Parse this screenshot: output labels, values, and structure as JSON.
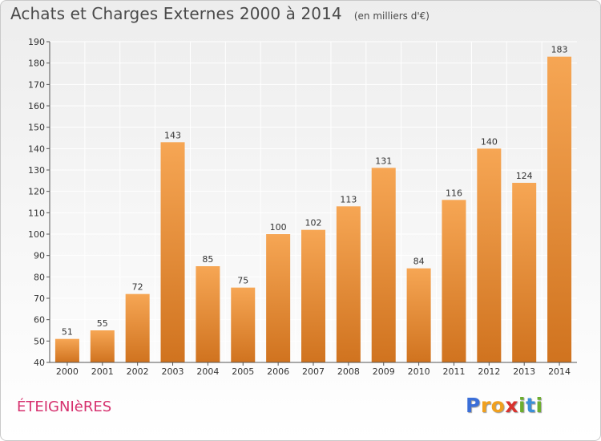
{
  "header": {
    "title": "Achats et Charges Externes 2000 à 2014",
    "subtitle": "(en milliers d'€)"
  },
  "footer": {
    "commune": "ÉTEIGNIèRES",
    "logo": {
      "letters": [
        "P",
        "r",
        "o",
        "x",
        "i",
        "t",
        "i"
      ],
      "colors": [
        "#3b6fd8",
        "#f0a01e",
        "#f0a01e",
        "#d8322e",
        "#6cae2e",
        "#3b8fd8",
        "#6cae2e"
      ]
    }
  },
  "chart_data": {
    "type": "bar",
    "categories": [
      "2000",
      "2001",
      "2002",
      "2003",
      "2004",
      "2005",
      "2006",
      "2007",
      "2008",
      "2009",
      "2010",
      "2011",
      "2012",
      "2013",
      "2014"
    ],
    "values": [
      51,
      55,
      72,
      143,
      85,
      75,
      100,
      102,
      113,
      131,
      84,
      116,
      140,
      124,
      183
    ],
    "ylim": [
      40,
      190
    ],
    "yticks": [
      40,
      50,
      60,
      70,
      80,
      90,
      100,
      110,
      120,
      130,
      140,
      150,
      160,
      170,
      180,
      190
    ],
    "grid": true,
    "data_labels": true,
    "colors": {
      "bar_top": "#f6a654",
      "bar_bottom": "#d0731f",
      "grid": "#ffffff",
      "axis": "#555555",
      "text": "#333333"
    }
  }
}
